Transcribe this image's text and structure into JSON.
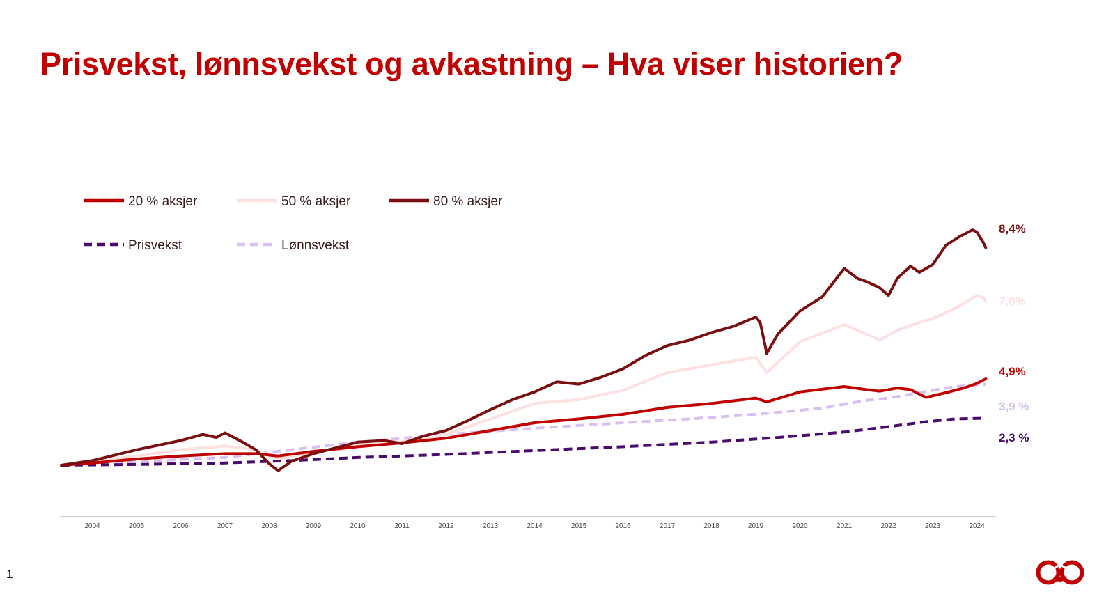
{
  "title": "Prisvekst, lønnsvekst og avkastning – Hva viser historien?",
  "page_number": "1",
  "colors": {
    "title": "#c00000",
    "aksjer20": "#c00000",
    "aksjer50": "#fde0df",
    "aksjer80": "#7a0f10",
    "prisvekst": "#4b0a6e",
    "lonnsvekst": "#d9bff2",
    "axis": "#bbbbbb"
  },
  "chart_data": {
    "type": "line",
    "title": "",
    "xlabel": "",
    "ylabel": "",
    "xlim": [
      2003.3,
      2024.4
    ],
    "ylim": [
      0.8,
      4.05
    ],
    "x_ticks": [
      "2004",
      "2005",
      "2006",
      "2007",
      "2008",
      "2009",
      "2010",
      "2011",
      "2012",
      "2013",
      "2014",
      "2015",
      "2016",
      "2017",
      "2018",
      "2019",
      "2020",
      "2021",
      "2022",
      "2023",
      "2024"
    ],
    "legend_position": "top-left",
    "grid": false,
    "series": [
      {
        "name": "20 % aksjer",
        "key": "aksjer20",
        "dashed": false,
        "end_label": "4,9%",
        "x": [
          2003.3,
          2004.0,
          2005.0,
          2006.0,
          2007.0,
          2007.7,
          2008.2,
          2009.0,
          2010.0,
          2011.0,
          2012.0,
          2013.0,
          2014.0,
          2015.0,
          2016.0,
          2017.0,
          2018.0,
          2019.0,
          2019.25,
          2020.0,
          2021.0,
          2021.5,
          2021.8,
          2022.2,
          2022.5,
          2022.7,
          2022.85,
          2023.0,
          2023.3,
          2023.7,
          2024.0,
          2024.2
        ],
        "y": [
          1.0,
          1.03,
          1.08,
          1.12,
          1.15,
          1.15,
          1.12,
          1.18,
          1.24,
          1.29,
          1.35,
          1.45,
          1.55,
          1.6,
          1.66,
          1.75,
          1.8,
          1.87,
          1.82,
          1.95,
          2.02,
          1.98,
          1.96,
          2.0,
          1.98,
          1.92,
          1.88,
          1.9,
          1.94,
          2.0,
          2.06,
          2.12
        ]
      },
      {
        "name": "50 % aksjer",
        "key": "aksjer50",
        "dashed": false,
        "end_label": "7,0%",
        "x": [
          2003.3,
          2004.0,
          2005.0,
          2006.0,
          2007.0,
          2007.7,
          2008.2,
          2009.0,
          2010.0,
          2011.0,
          2012.0,
          2013.0,
          2014.0,
          2015.0,
          2016.0,
          2017.0,
          2018.0,
          2019.0,
          2019.25,
          2020.0,
          2021.0,
          2021.5,
          2021.8,
          2022.2,
          2022.7,
          2023.0,
          2023.5,
          2024.0,
          2024.15,
          2024.2
        ],
        "y": [
          1.0,
          1.05,
          1.12,
          1.2,
          1.25,
          1.2,
          1.08,
          1.17,
          1.27,
          1.31,
          1.4,
          1.6,
          1.8,
          1.85,
          1.97,
          2.2,
          2.3,
          2.4,
          2.2,
          2.6,
          2.82,
          2.7,
          2.62,
          2.75,
          2.85,
          2.9,
          3.03,
          3.2,
          3.17,
          3.12
        ]
      },
      {
        "name": "80 % aksjer",
        "key": "aksjer80",
        "dashed": false,
        "end_label": "8,4%",
        "x": [
          2003.3,
          2004.0,
          2005.0,
          2006.0,
          2006.5,
          2006.8,
          2007.0,
          2007.4,
          2007.7,
          2008.0,
          2008.2,
          2008.5,
          2009.0,
          2010.0,
          2010.6,
          2011.0,
          2011.5,
          2012.0,
          2012.5,
          2013.0,
          2013.5,
          2014.0,
          2014.5,
          2015.0,
          2015.5,
          2016.0,
          2016.5,
          2017.0,
          2017.5,
          2018.0,
          2018.5,
          2019.0,
          2019.1,
          2019.25,
          2019.5,
          2020.0,
          2020.5,
          2021.0,
          2021.3,
          2021.5,
          2021.8,
          2022.0,
          2022.2,
          2022.5,
          2022.7,
          2023.0,
          2023.3,
          2023.6,
          2023.9,
          2024.0,
          2024.15,
          2024.2
        ],
        "y": [
          1.0,
          1.06,
          1.2,
          1.32,
          1.4,
          1.36,
          1.42,
          1.3,
          1.2,
          1.02,
          0.93,
          1.05,
          1.15,
          1.3,
          1.32,
          1.28,
          1.38,
          1.45,
          1.58,
          1.72,
          1.85,
          1.95,
          2.08,
          2.05,
          2.14,
          2.25,
          2.42,
          2.55,
          2.62,
          2.72,
          2.8,
          2.92,
          2.85,
          2.45,
          2.7,
          3.0,
          3.18,
          3.55,
          3.42,
          3.38,
          3.3,
          3.2,
          3.42,
          3.58,
          3.5,
          3.6,
          3.85,
          3.96,
          4.05,
          4.02,
          3.88,
          3.82
        ]
      },
      {
        "name": "Prisvekst",
        "key": "prisvekst",
        "dashed": true,
        "end_label": "2,3 %",
        "x": [
          2003.3,
          2005.0,
          2007.0,
          2008.5,
          2010.0,
          2012.0,
          2014.0,
          2016.0,
          2018.0,
          2019.5,
          2021.0,
          2022.0,
          2022.8,
          2023.5,
          2024.2
        ],
        "y": [
          1.0,
          1.01,
          1.03,
          1.06,
          1.1,
          1.14,
          1.19,
          1.24,
          1.3,
          1.36,
          1.43,
          1.5,
          1.56,
          1.6,
          1.61
        ]
      },
      {
        "name": "Lønnsvekst",
        "key": "lonnsvekst",
        "dashed": true,
        "end_label": "3,9 %",
        "x": [
          2003.3,
          2005.0,
          2007.0,
          2008.5,
          2010.0,
          2012.0,
          2014.0,
          2016.0,
          2017.5,
          2019.0,
          2020.5,
          2021.5,
          2022.0,
          2022.5,
          2023.5,
          2024.2
        ],
        "y": [
          1.0,
          1.05,
          1.1,
          1.2,
          1.3,
          1.4,
          1.48,
          1.55,
          1.6,
          1.66,
          1.74,
          1.84,
          1.87,
          1.92,
          2.02,
          2.05
        ]
      }
    ]
  }
}
